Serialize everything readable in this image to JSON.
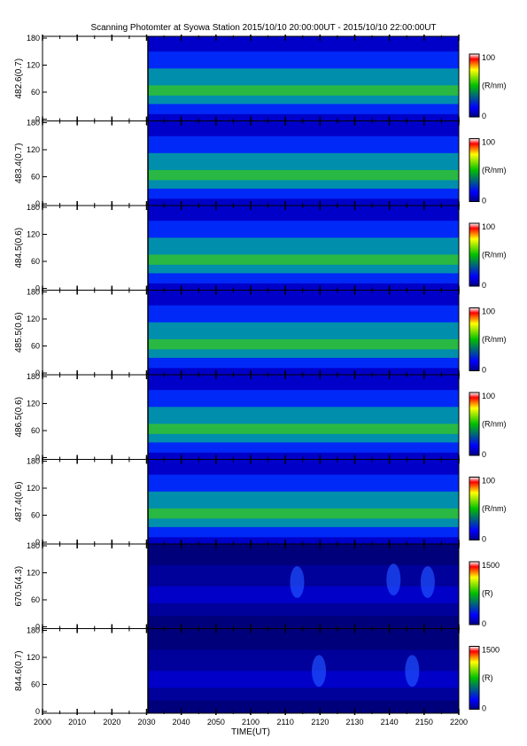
{
  "title": "Scanning Photomter at Syowa Station 2015/10/10 20:00:00UT - 2015/10/10 22:00:00UT",
  "colors": {
    "background": "#ffffff",
    "axis": "#000000",
    "colorbar": [
      "#000080",
      "#0000ff",
      "#00c000",
      "#ffff00",
      "#ff0000",
      "#ffffff"
    ]
  },
  "chart_data": {
    "type": "heatmap",
    "xlabel": "TIME(UT)",
    "x_tick_labels": [
      "2000",
      "2010",
      "2020",
      "2030",
      "2040",
      "2050",
      "2100",
      "2110",
      "2120",
      "2130",
      "2140",
      "2150",
      "2200"
    ],
    "x_range": [
      "20:00",
      "22:00"
    ],
    "data_start": "20:30",
    "y_tick_labels": [
      "0",
      "60",
      "120",
      "180"
    ],
    "ylim": [
      0,
      180
    ],
    "panels": [
      {
        "ylabel": "482.6(0.7)",
        "cbar_unit": "(R/nm)",
        "cbar_min": "0",
        "cbar_max": "100"
      },
      {
        "ylabel": "483.4(0.7)",
        "cbar_unit": "(R/nm)",
        "cbar_min": "0",
        "cbar_max": "100"
      },
      {
        "ylabel": "484.5(0.6)",
        "cbar_unit": "(R/nm)",
        "cbar_min": "0",
        "cbar_max": "100"
      },
      {
        "ylabel": "485.5(0.6)",
        "cbar_unit": "(R/nm)",
        "cbar_min": "0",
        "cbar_max": "100"
      },
      {
        "ylabel": "486.5(0.6)",
        "cbar_unit": "(R/nm)",
        "cbar_min": "0",
        "cbar_max": "100"
      },
      {
        "ylabel": "487.4(0.6)",
        "cbar_unit": "(R/nm)",
        "cbar_min": "0",
        "cbar_max": "100"
      },
      {
        "ylabel": "670.5(4.3)",
        "cbar_unit": "(R)",
        "cbar_min": "0",
        "cbar_max": "1500"
      },
      {
        "ylabel": "844.6(0.7)",
        "cbar_unit": "(R)",
        "cbar_min": "0",
        "cbar_max": "1500"
      }
    ]
  }
}
